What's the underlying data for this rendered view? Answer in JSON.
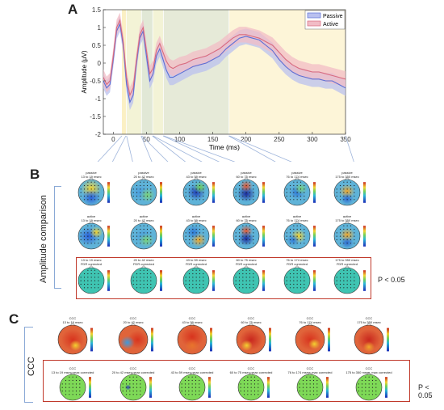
{
  "panels": {
    "a": "A",
    "b": "B",
    "c": "C"
  },
  "chart_data": {
    "type": "line",
    "xlabel": "Time (ms)",
    "ylabel": "Amplitude (μV)",
    "xlim": [
      -15,
      350
    ],
    "ylim": [
      -2,
      1.5
    ],
    "xticks": [
      "0",
      "50",
      "100",
      "150",
      "200",
      "250",
      "300",
      "350"
    ],
    "yticks": [
      "-2",
      "-1.5",
      "-1",
      "-0.5",
      "0",
      "0.5",
      "1",
      "1.5"
    ],
    "legend_position": "top-right",
    "x": [
      -15,
      -10,
      -5,
      0,
      5,
      10,
      15,
      20,
      25,
      30,
      35,
      40,
      45,
      50,
      55,
      60,
      65,
      70,
      75,
      80,
      85,
      90,
      95,
      100,
      110,
      120,
      130,
      140,
      150,
      160,
      170,
      180,
      190,
      200,
      210,
      220,
      230,
      240,
      250,
      260,
      270,
      280,
      290,
      300,
      310,
      320,
      330,
      340,
      350
    ],
    "series": [
      {
        "name": "Passive",
        "color": "#5a6fd6",
        "band": "#b9c0ef",
        "values": [
          -0.5,
          -0.7,
          -0.6,
          0.1,
          0.9,
          1.1,
          0.5,
          -0.6,
          -1.1,
          -0.9,
          0,
          0.7,
          0.9,
          0.2,
          -0.5,
          -0.3,
          0.2,
          0.4,
          0.1,
          -0.2,
          -0.4,
          -0.4,
          -0.35,
          -0.3,
          -0.2,
          -0.1,
          -0.05,
          0,
          0.1,
          0.2,
          0.4,
          0.55,
          0.7,
          0.75,
          0.7,
          0.65,
          0.5,
          0.35,
          0.1,
          -0.1,
          -0.25,
          -0.35,
          -0.4,
          -0.45,
          -0.45,
          -0.5,
          -0.5,
          -0.6,
          -0.7
        ]
      },
      {
        "name": "Active",
        "color": "#d96a7e",
        "band": "#f1bcc6",
        "values": [
          -0.4,
          -0.6,
          -0.5,
          0.2,
          1.0,
          1.2,
          0.6,
          -0.4,
          -0.9,
          -0.7,
          0.1,
          0.8,
          1.0,
          0.35,
          -0.3,
          -0.15,
          0.35,
          0.55,
          0.3,
          0.05,
          -0.1,
          -0.15,
          -0.1,
          -0.05,
          0,
          0.1,
          0.15,
          0.2,
          0.3,
          0.4,
          0.55,
          0.7,
          0.8,
          0.8,
          0.75,
          0.7,
          0.6,
          0.5,
          0.3,
          0.1,
          -0.05,
          -0.15,
          -0.2,
          -0.25,
          -0.25,
          -0.3,
          -0.35,
          -0.4,
          -0.45
        ]
      }
    ],
    "shaded_windows": [
      {
        "range": [
          13,
          19
        ],
        "color": "#fbf0c4"
      },
      {
        "range": [
          20,
          42
        ],
        "color": "#f3f3d6"
      },
      {
        "range": [
          43,
          59
        ],
        "color": "#e1e8d6"
      },
      {
        "range": [
          60,
          75
        ],
        "color": "#f3f3d6"
      },
      {
        "range": [
          76,
          174
        ],
        "color": "#e6ead8"
      },
      {
        "range": [
          175,
          350
        ],
        "color": "#fdf5d8"
      }
    ]
  },
  "panel_b": {
    "side_label": "Amplitude comparison",
    "passive_titles": [
      "passive\n13 to 19 msec",
      "passive\n20 to 42 msec",
      "passive\n43 to 59 msec",
      "passive\n60 to 75 msec",
      "passive\n76 to 174 msec",
      "passive\n175 to 350 msec"
    ],
    "active_titles": [
      "active\n13 to 19 msec",
      "active\n20 to 42 msec",
      "active\n43 to 59 msec",
      "active\n60 to 75 msec",
      "active\n76 to 174 msec",
      "active\n175 to 350 msec"
    ],
    "fdr_titles": [
      "13 to 19 msec\nFDR corrected",
      "20 to 42 msec\nFDR corrected",
      "43 to 59 msec\nFDR corrected",
      "60 to 75 msec\nFDR corrected",
      "76 to 174 msec\nFDR corrected",
      "175 to 350 msec\nFDR corrected"
    ],
    "p_label": "P < 0.05"
  },
  "panel_c": {
    "side_label": "CCC",
    "ccc_titles": [
      "CCC\n13 to 19 msec",
      "CCC\n20 to 42 msec",
      "CCC\n43 to 59 msec",
      "CCC\n60 to 75 msec",
      "CCC\n76 to 174 msec",
      "CCC\n175 to 350 msec"
    ],
    "max_titles": [
      "CCC\n13 to 19 msec, max corrected",
      "CCC\n20 to 42 msec, max corrected",
      "CCC\n43 to 59 msec, max corrected",
      "CCC\n60 to 75 msec, max corrected",
      "CCC\n76 to 174 msec, max corrected",
      "CCC\n175 to 350 msec, max corrected"
    ],
    "p_label": "P < 0.05"
  }
}
